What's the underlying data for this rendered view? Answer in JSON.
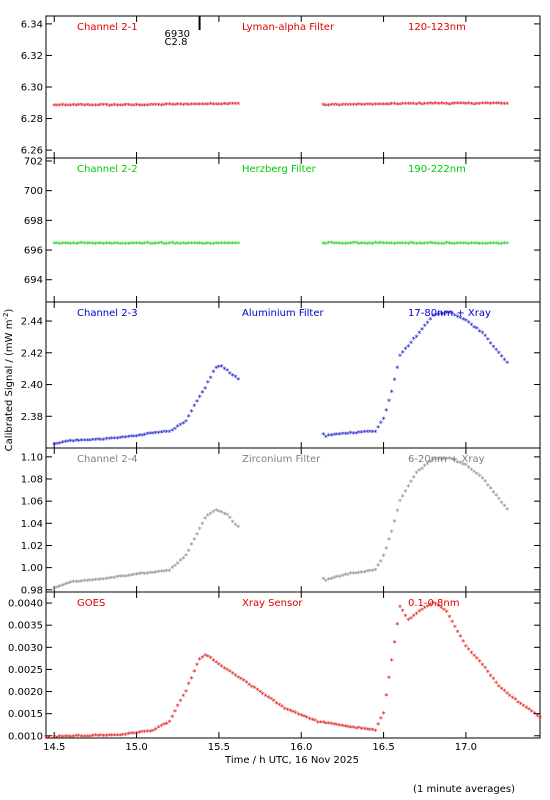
{
  "chart_data": {
    "type": "scatter",
    "xlabel": "Time / h UTC, 16 Nov 2025",
    "ylabel": "Calibrated Signal / (mW m",
    "ylabel_sup": "-2",
    "ylabel_close": ")",
    "note": "(1 minute averages)",
    "xlim": [
      14.45,
      17.45
    ],
    "x_ticks": [
      "14.5",
      "15.0",
      "15.5",
      "16.0",
      "16.5",
      "17.0"
    ],
    "x_tick_values": [
      14.5,
      15.0,
      15.5,
      16.0,
      16.5,
      17.0
    ],
    "gap": [
      15.62,
      16.12
    ],
    "annotation": {
      "line1": "6930",
      "line2": "C2.8",
      "x": 15.17
    },
    "panels": [
      {
        "channel": "Channel 2-1",
        "filter": "Lyman-alpha Filter",
        "band": "120-123nm",
        "color": "#dd0000",
        "ylim": [
          6.255,
          6.345
        ],
        "yticks": [
          6.26,
          6.28,
          6.3,
          6.32,
          6.34
        ],
        "ytick_labels": [
          "6.26",
          "6.28",
          "6.30",
          "6.32",
          "6.34"
        ],
        "points": [
          [
            14.5,
            6.288
          ],
          [
            15.0,
            6.288
          ],
          [
            15.6,
            6.289
          ],
          [
            16.15,
            6.288
          ],
          [
            16.8,
            6.289
          ],
          [
            17.25,
            6.289
          ]
        ]
      },
      {
        "channel": "Channel 2-2",
        "filter": "Herzberg Filter",
        "band": "190-222nm",
        "color": "#00cc00",
        "ylim": [
          692.5,
          702.2
        ],
        "yticks": [
          694,
          696,
          698,
          700,
          702
        ],
        "ytick_labels": [
          "694",
          "696",
          "698",
          "700",
          "702"
        ],
        "points": [
          [
            14.5,
            696.4
          ],
          [
            15.0,
            696.4
          ],
          [
            15.6,
            696.4
          ],
          [
            16.15,
            696.4
          ],
          [
            16.8,
            696.4
          ],
          [
            17.25,
            696.4
          ]
        ]
      },
      {
        "channel": "Channel 2-3",
        "filter": "Aluminium Filter",
        "band": "17-80nm + Xray",
        "color": "#0000cc",
        "ylim": [
          2.36,
          2.452
        ],
        "yticks": [
          2.38,
          2.4,
          2.42,
          2.44
        ],
        "ytick_labels": [
          "2.38",
          "2.40",
          "2.42",
          "2.44"
        ],
        "points": [
          [
            14.5,
            2.362
          ],
          [
            14.6,
            2.364
          ],
          [
            14.8,
            2.365
          ],
          [
            15.0,
            2.367
          ],
          [
            15.1,
            2.369
          ],
          [
            15.2,
            2.37
          ],
          [
            15.3,
            2.376
          ],
          [
            15.35,
            2.386
          ],
          [
            15.42,
            2.398
          ],
          [
            15.48,
            2.41
          ],
          [
            15.52,
            2.411
          ],
          [
            15.6,
            2.404
          ],
          [
            16.15,
            2.367
          ],
          [
            16.3,
            2.369
          ],
          [
            16.45,
            2.37
          ],
          [
            16.5,
            2.378
          ],
          [
            16.55,
            2.395
          ],
          [
            16.6,
            2.418
          ],
          [
            16.7,
            2.43
          ],
          [
            16.8,
            2.443
          ],
          [
            16.9,
            2.445
          ],
          [
            17.0,
            2.44
          ],
          [
            17.1,
            2.432
          ],
          [
            17.25,
            2.413
          ]
        ]
      },
      {
        "channel": "Channel 2-4",
        "filter": "Zirconium Filter",
        "band": "6-20nm + Xray",
        "color": "#808080",
        "ylim": [
          0.978,
          1.108
        ],
        "yticks": [
          0.98,
          1.0,
          1.02,
          1.04,
          1.06,
          1.08,
          1.1
        ],
        "ytick_labels": [
          "0.98",
          "1.00",
          "1.02",
          "1.04",
          "1.06",
          "1.08",
          "1.10"
        ],
        "points": [
          [
            14.5,
            0.981
          ],
          [
            14.6,
            0.986
          ],
          [
            14.8,
            0.989
          ],
          [
            15.0,
            0.993
          ],
          [
            15.1,
            0.995
          ],
          [
            15.2,
            0.997
          ],
          [
            15.3,
            1.01
          ],
          [
            15.35,
            1.025
          ],
          [
            15.42,
            1.045
          ],
          [
            15.48,
            1.051
          ],
          [
            15.55,
            1.047
          ],
          [
            15.6,
            1.038
          ],
          [
            16.15,
            0.988
          ],
          [
            16.3,
            0.994
          ],
          [
            16.45,
            0.997
          ],
          [
            16.5,
            1.01
          ],
          [
            16.55,
            1.032
          ],
          [
            16.6,
            1.06
          ],
          [
            16.7,
            1.085
          ],
          [
            16.8,
            1.097
          ],
          [
            16.9,
            1.098
          ],
          [
            17.0,
            1.092
          ],
          [
            17.1,
            1.08
          ],
          [
            17.25,
            1.052
          ]
        ]
      },
      {
        "channel": "GOES",
        "filter": "Xray Sensor",
        "band": "0.1-0.8nm",
        "color": "#dd0000",
        "ylim": [
          0.00095,
          0.00425
        ],
        "yticks": [
          0.001,
          0.0015,
          0.002,
          0.0025,
          0.003,
          0.0035,
          0.004
        ],
        "ytick_labels": [
          "0.0010",
          "0.0015",
          "0.0020",
          "0.0025",
          "0.0030",
          "0.0035",
          "0.0040"
        ],
        "points": [
          [
            14.45,
            0.00095
          ],
          [
            14.7,
            0.00098
          ],
          [
            14.9,
            0.001
          ],
          [
            15.0,
            0.00105
          ],
          [
            15.1,
            0.0011
          ],
          [
            15.2,
            0.0013
          ],
          [
            15.3,
            0.002
          ],
          [
            15.38,
            0.0027
          ],
          [
            15.42,
            0.00282
          ],
          [
            15.5,
            0.0026
          ],
          [
            15.7,
            0.0021
          ],
          [
            15.9,
            0.0016
          ],
          [
            16.1,
            0.0013
          ],
          [
            16.3,
            0.00118
          ],
          [
            16.45,
            0.0011
          ],
          [
            16.5,
            0.0015
          ],
          [
            16.55,
            0.0027
          ],
          [
            16.6,
            0.0039
          ],
          [
            16.65,
            0.0036
          ],
          [
            16.72,
            0.0038
          ],
          [
            16.8,
            0.004
          ],
          [
            16.88,
            0.0038
          ],
          [
            17.0,
            0.003
          ],
          [
            17.1,
            0.0026
          ],
          [
            17.2,
            0.0021
          ],
          [
            17.3,
            0.0018
          ],
          [
            17.45,
            0.0014
          ]
        ]
      }
    ]
  }
}
